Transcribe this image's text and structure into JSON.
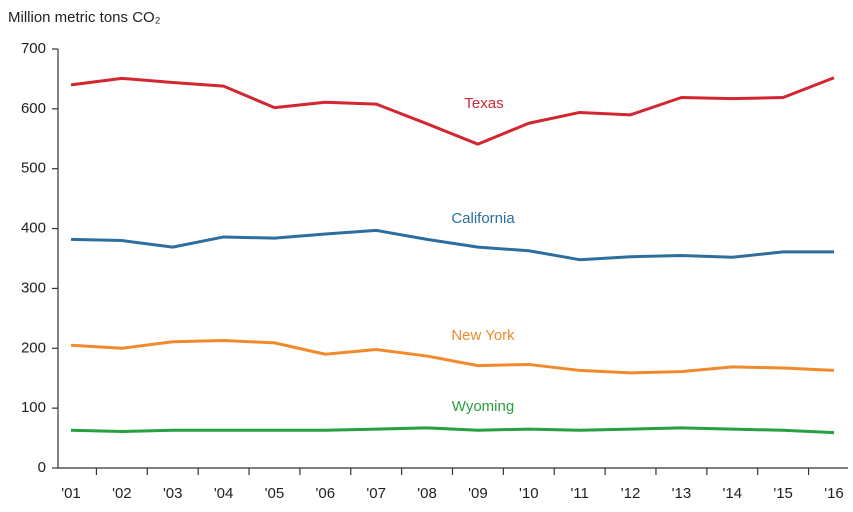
{
  "chart_data": {
    "type": "line",
    "y_label": "Million metric tons CO₂",
    "categories": [
      "'01",
      "'02",
      "'03",
      "'04",
      "'05",
      "'06",
      "'07",
      "'08",
      "'09",
      "'10",
      "'11",
      "'12",
      "'13",
      "'14",
      "'15",
      "'16"
    ],
    "series": [
      {
        "name": "Texas",
        "color": "#d22630",
        "values": [
          640,
          651,
          644,
          638,
          602,
          611,
          608,
          575,
          541,
          576,
          594,
          590,
          619,
          617,
          619,
          652
        ]
      },
      {
        "name": "California",
        "color": "#2e6e9e",
        "values": [
          382,
          380,
          369,
          386,
          384,
          391,
          397,
          382,
          369,
          363,
          348,
          353,
          355,
          352,
          361,
          361
        ]
      },
      {
        "name": "New York",
        "color": "#f08a2c",
        "values": [
          205,
          200,
          211,
          213,
          209,
          190,
          198,
          187,
          171,
          173,
          163,
          159,
          161,
          169,
          167,
          163
        ]
      },
      {
        "name": "Wyoming",
        "color": "#27a040",
        "values": [
          63,
          61,
          63,
          63,
          63,
          63,
          65,
          67,
          63,
          65,
          63,
          65,
          67,
          65,
          63,
          59
        ]
      }
    ],
    "ylim": [
      0,
      700
    ],
    "yticks": [
      0,
      100,
      200,
      300,
      400,
      500,
      600,
      700
    ],
    "grid": false
  }
}
